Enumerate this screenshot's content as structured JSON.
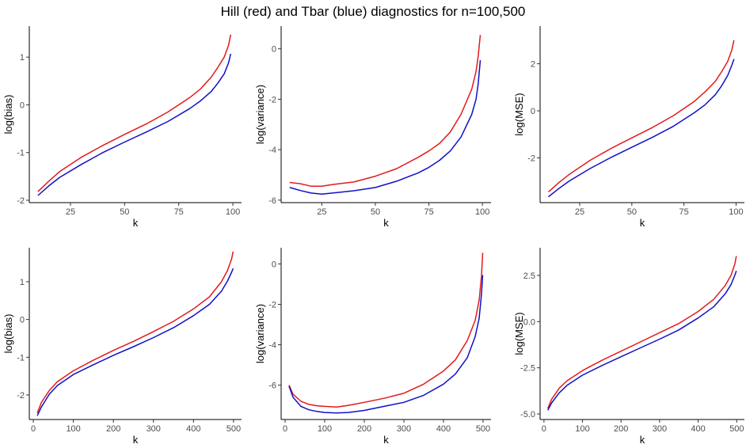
{
  "title": "Hill (red) and Tbar (blue) diagnostics for n=100,500",
  "colors": {
    "red": "#e31a1c",
    "blue": "#1010c8"
  },
  "chart_data": [
    {
      "type": "line",
      "title": "",
      "xlabel": "k",
      "ylabel": "log(bias)",
      "xlim": [
        6,
        104
      ],
      "ylim": [
        -2.05,
        1.65
      ],
      "xticks": [
        25,
        50,
        75,
        100
      ],
      "xtick_labels": [
        "25",
        "50",
        "75",
        "100"
      ],
      "yticks": [
        -2,
        -1,
        0,
        1
      ],
      "ytick_labels": [
        "-2",
        "-1",
        "0",
        "1"
      ],
      "series": [
        {
          "name": "Hill",
          "color": "red",
          "x": [
            10,
            15,
            20,
            30,
            40,
            50,
            60,
            70,
            80,
            85,
            90,
            93,
            96,
            98,
            99
          ],
          "y": [
            -1.82,
            -1.6,
            -1.4,
            -1.1,
            -0.85,
            -0.62,
            -0.4,
            -0.15,
            0.15,
            0.33,
            0.58,
            0.78,
            1.0,
            1.25,
            1.47
          ]
        },
        {
          "name": "Tbar",
          "color": "blue",
          "x": [
            10,
            15,
            20,
            30,
            40,
            50,
            60,
            70,
            80,
            85,
            90,
            93,
            96,
            98,
            99
          ],
          "y": [
            -1.9,
            -1.7,
            -1.52,
            -1.25,
            -1.0,
            -0.78,
            -0.57,
            -0.35,
            -0.08,
            0.08,
            0.28,
            0.45,
            0.65,
            0.88,
            1.07
          ]
        }
      ]
    },
    {
      "type": "line",
      "title": "",
      "xlabel": "k",
      "ylabel": "log(variance)",
      "xlim": [
        6,
        104
      ],
      "ylim": [
        -6.1,
        0.9
      ],
      "xticks": [
        25,
        50,
        75,
        100
      ],
      "xtick_labels": [
        "25",
        "50",
        "75",
        "100"
      ],
      "yticks": [
        -6,
        -4,
        -2,
        0
      ],
      "ytick_labels": [
        "-6",
        "-4",
        "-2",
        "0"
      ],
      "series": [
        {
          "name": "Hill",
          "color": "red",
          "x": [
            10,
            15,
            20,
            25,
            30,
            40,
            50,
            60,
            70,
            75,
            80,
            85,
            90,
            95,
            97,
            98,
            99
          ],
          "y": [
            -5.3,
            -5.35,
            -5.45,
            -5.45,
            -5.38,
            -5.28,
            -5.05,
            -4.75,
            -4.3,
            -4.05,
            -3.75,
            -3.3,
            -2.6,
            -1.6,
            -0.9,
            -0.3,
            0.55
          ]
        },
        {
          "name": "Tbar",
          "color": "blue",
          "x": [
            10,
            15,
            20,
            25,
            30,
            40,
            50,
            60,
            70,
            75,
            80,
            85,
            90,
            95,
            97,
            98,
            99
          ],
          "y": [
            -5.5,
            -5.62,
            -5.72,
            -5.76,
            -5.72,
            -5.63,
            -5.5,
            -5.25,
            -4.92,
            -4.7,
            -4.42,
            -4.05,
            -3.5,
            -2.6,
            -2.0,
            -1.4,
            -0.45
          ]
        }
      ]
    },
    {
      "type": "line",
      "title": "",
      "xlabel": "k",
      "ylabel": "log(MSE)",
      "xlim": [
        6,
        104
      ],
      "ylim": [
        -3.9,
        3.6
      ],
      "xticks": [
        25,
        50,
        75,
        100
      ],
      "xtick_labels": [
        "25",
        "50",
        "75",
        "100"
      ],
      "yticks": [
        -2,
        0,
        2
      ],
      "ytick_labels": [
        "-2",
        "0",
        "2"
      ],
      "series": [
        {
          "name": "Hill",
          "color": "red",
          "x": [
            10,
            15,
            20,
            30,
            40,
            50,
            60,
            70,
            80,
            85,
            90,
            93,
            96,
            98,
            99
          ],
          "y": [
            -3.45,
            -3.05,
            -2.7,
            -2.1,
            -1.6,
            -1.15,
            -0.7,
            -0.2,
            0.4,
            0.8,
            1.25,
            1.65,
            2.1,
            2.6,
            3.0
          ]
        },
        {
          "name": "Tbar",
          "color": "blue",
          "x": [
            10,
            15,
            20,
            30,
            40,
            50,
            60,
            70,
            80,
            85,
            90,
            93,
            96,
            98,
            99
          ],
          "y": [
            -3.65,
            -3.3,
            -2.98,
            -2.45,
            -1.98,
            -1.55,
            -1.12,
            -0.65,
            -0.08,
            0.25,
            0.68,
            1.05,
            1.5,
            1.95,
            2.2
          ]
        }
      ]
    },
    {
      "type": "line",
      "title": "",
      "xlabel": "k",
      "ylabel": "log(bias)",
      "xlim": [
        -10,
        520
      ],
      "ylim": [
        -2.65,
        1.9
      ],
      "xticks": [
        0,
        100,
        200,
        300,
        400,
        500
      ],
      "xtick_labels": [
        "0",
        "100",
        "200",
        "300",
        "400",
        "500"
      ],
      "yticks": [
        -2,
        -1,
        0,
        1
      ],
      "ytick_labels": [
        "-2",
        "-1",
        "0",
        "1"
      ],
      "series": [
        {
          "name": "Hill",
          "color": "red",
          "x": [
            10,
            20,
            40,
            60,
            100,
            150,
            200,
            250,
            300,
            350,
            400,
            440,
            470,
            485,
            495,
            499
          ],
          "y": [
            -2.48,
            -2.2,
            -1.88,
            -1.65,
            -1.36,
            -1.08,
            -0.82,
            -0.58,
            -0.32,
            -0.05,
            0.28,
            0.6,
            1.0,
            1.3,
            1.6,
            1.8
          ]
        },
        {
          "name": "Tbar",
          "color": "blue",
          "x": [
            10,
            20,
            40,
            60,
            100,
            150,
            200,
            250,
            300,
            350,
            400,
            440,
            470,
            485,
            495,
            499
          ],
          "y": [
            -2.55,
            -2.32,
            -1.98,
            -1.75,
            -1.46,
            -1.2,
            -0.95,
            -0.72,
            -0.48,
            -0.22,
            0.1,
            0.4,
            0.75,
            1.02,
            1.25,
            1.35
          ]
        }
      ]
    },
    {
      "type": "line",
      "title": "",
      "xlabel": "k",
      "ylabel": "log(variance)",
      "xlim": [
        -10,
        520
      ],
      "ylim": [
        -7.7,
        0.8
      ],
      "xticks": [
        0,
        100,
        200,
        300,
        400,
        500
      ],
      "xtick_labels": [
        "0",
        "100",
        "200",
        "300",
        "400",
        "500"
      ],
      "yticks": [
        -6,
        -4,
        -2,
        0
      ],
      "ytick_labels": [
        "-6",
        "-4",
        "-2",
        "0"
      ],
      "series": [
        {
          "name": "Hill",
          "color": "red",
          "x": [
            10,
            20,
            40,
            60,
            80,
            100,
            130,
            160,
            200,
            250,
            300,
            350,
            400,
            430,
            460,
            480,
            490,
            496,
            499
          ],
          "y": [
            -6.0,
            -6.45,
            -6.8,
            -6.95,
            -7.02,
            -7.05,
            -7.08,
            -7.0,
            -6.85,
            -6.65,
            -6.4,
            -5.95,
            -5.3,
            -4.75,
            -3.8,
            -2.8,
            -1.8,
            -0.6,
            0.55
          ]
        },
        {
          "name": "Tbar",
          "color": "blue",
          "x": [
            10,
            20,
            40,
            60,
            80,
            100,
            130,
            160,
            200,
            250,
            300,
            350,
            400,
            430,
            460,
            480,
            490,
            496,
            499
          ],
          "y": [
            -6.05,
            -6.6,
            -7.05,
            -7.22,
            -7.3,
            -7.35,
            -7.38,
            -7.35,
            -7.25,
            -7.05,
            -6.85,
            -6.5,
            -5.95,
            -5.45,
            -4.65,
            -3.6,
            -2.7,
            -1.5,
            -0.55
          ]
        }
      ]
    },
    {
      "type": "line",
      "title": "",
      "xlabel": "k",
      "ylabel": "log(MSE)",
      "xlim": [
        -10,
        520
      ],
      "ylim": [
        -5.3,
        4.0
      ],
      "xticks": [
        0,
        100,
        200,
        300,
        400,
        500
      ],
      "xtick_labels": [
        "0",
        "100",
        "200",
        "300",
        "400",
        "500"
      ],
      "yticks": [
        -5,
        -2.5,
        0,
        2.5
      ],
      "ytick_labels": [
        "-5.0",
        "-2.5",
        "0.0",
        "2.5"
      ],
      "series": [
        {
          "name": "Hill",
          "color": "red",
          "x": [
            10,
            20,
            40,
            60,
            100,
            150,
            200,
            250,
            300,
            350,
            400,
            440,
            470,
            485,
            495,
            499
          ],
          "y": [
            -4.7,
            -4.2,
            -3.6,
            -3.2,
            -2.65,
            -2.1,
            -1.6,
            -1.1,
            -0.6,
            -0.1,
            0.55,
            1.2,
            1.95,
            2.5,
            3.1,
            3.55
          ]
        },
        {
          "name": "Tbar",
          "color": "blue",
          "x": [
            10,
            20,
            40,
            60,
            100,
            150,
            200,
            250,
            300,
            350,
            400,
            440,
            470,
            485,
            495,
            499
          ],
          "y": [
            -4.8,
            -4.4,
            -3.85,
            -3.45,
            -2.9,
            -2.38,
            -1.9,
            -1.42,
            -0.95,
            -0.45,
            0.2,
            0.8,
            1.5,
            2.0,
            2.5,
            2.75
          ]
        }
      ]
    }
  ]
}
